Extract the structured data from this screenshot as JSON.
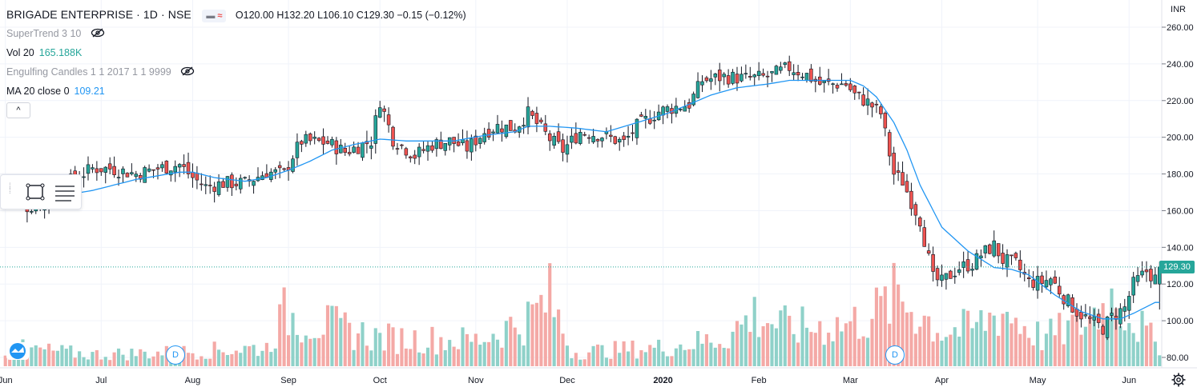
{
  "header": {
    "symbol_title": "BRIGADE ENTERPRISE · 1D · NSE",
    "badge_symbol": "≈",
    "ohlc": "O120.00  H132.20  L106.10  C129.30  −0.15 (−0.12%)"
  },
  "indicators": {
    "supertrend": "SuperTrend 3 10",
    "vol_label": "Vol 20",
    "vol_value": "165.188K",
    "engulfing": "Engulfing Candles 1 1 2017 1 1 9999",
    "ma_label": "MA 20 close 0",
    "ma_value": "109.21"
  },
  "currency": "INR",
  "last_price_label": "129.30",
  "collapse_label": "^",
  "dividend_marker_label": "D",
  "colors": {
    "up": "#26a69a",
    "down": "#ef5350",
    "up_volume": "#8fd1c9",
    "down_volume": "#f4a9a6",
    "ma_line": "#2196f3",
    "grid": "#f0f3fa",
    "axis_text": "#131722"
  },
  "icons": [
    "eye-off-icon",
    "rectangle-tool-icon",
    "lines-tool-icon",
    "drag-handle-icon",
    "tradingview-logo-icon",
    "gear-icon",
    "chevron-up-icon"
  ],
  "chart_data": {
    "type": "candlestick",
    "title": "BRIGADE ENTERPRISE · 1D · NSE",
    "ylim": [
      75,
      265
    ],
    "price_ticks": [
      80,
      100,
      120,
      140,
      160,
      180,
      200,
      220,
      240,
      260
    ],
    "price_tick_labels": [
      "80.00",
      "100.00",
      "120.00",
      "140.00",
      "160.00",
      "180.00",
      "200.00",
      "220.00",
      "240.00",
      "260.00"
    ],
    "x_tick_labels": [
      "Jun",
      "Jul",
      "Aug",
      "Sep",
      "Oct",
      "Nov",
      "Dec",
      "2020",
      "Feb",
      "Mar",
      "Apr",
      "May",
      "Jun"
    ],
    "x_tick_bars": [
      0,
      22,
      43,
      65,
      86,
      108,
      129,
      151,
      173,
      194,
      215,
      237,
      258
    ],
    "last_close": 129.3,
    "grid": true,
    "series": [
      {
        "name": "MA 20 close 0",
        "kind": "line",
        "anchors": [
          [
            0,
            163
          ],
          [
            10,
            167
          ],
          [
            20,
            171
          ],
          [
            30,
            177
          ],
          [
            40,
            181
          ],
          [
            43,
            181
          ],
          [
            48,
            178
          ],
          [
            55,
            176
          ],
          [
            60,
            178
          ],
          [
            65,
            182
          ],
          [
            70,
            187
          ],
          [
            75,
            193
          ],
          [
            80,
            196
          ],
          [
            86,
            199
          ],
          [
            92,
            198
          ],
          [
            97,
            198
          ],
          [
            103,
            198
          ],
          [
            110,
            201
          ],
          [
            117,
            203
          ],
          [
            120,
            206
          ],
          [
            125,
            206
          ],
          [
            131,
            205
          ],
          [
            138,
            203
          ],
          [
            145,
            208
          ],
          [
            152,
            213
          ],
          [
            157,
            218
          ],
          [
            162,
            223
          ],
          [
            168,
            227
          ],
          [
            175,
            229
          ],
          [
            180,
            231
          ],
          [
            187,
            231
          ],
          [
            194,
            231
          ],
          [
            197,
            228
          ],
          [
            200,
            222
          ],
          [
            204,
            208
          ],
          [
            207,
            193
          ],
          [
            210,
            174
          ],
          [
            215,
            151
          ],
          [
            221,
            138
          ],
          [
            227,
            129
          ],
          [
            231,
            128
          ],
          [
            235,
            125
          ],
          [
            241,
            114
          ],
          [
            247,
            105
          ],
          [
            252,
            101
          ],
          [
            256,
            101
          ],
          [
            259,
            104
          ],
          [
            264,
            110
          ]
        ]
      },
      {
        "name": "Price",
        "kind": "candles",
        "anchors": [
          [
            0,
            169
          ],
          [
            5,
            162
          ],
          [
            10,
            165
          ],
          [
            14,
            175
          ],
          [
            20,
            183
          ],
          [
            24,
            183
          ],
          [
            30,
            180
          ],
          [
            35,
            183
          ],
          [
            40,
            185
          ],
          [
            43,
            178
          ],
          [
            46,
            173
          ],
          [
            50,
            175
          ],
          [
            55,
            175
          ],
          [
            60,
            181
          ],
          [
            64,
            180
          ],
          [
            66,
            190
          ],
          [
            68,
            198
          ],
          [
            74,
            197
          ],
          [
            78,
            192
          ],
          [
            81,
            195
          ],
          [
            84,
            198
          ],
          [
            86,
            220
          ],
          [
            89,
            199
          ],
          [
            94,
            190
          ],
          [
            98,
            196
          ],
          [
            102,
            198
          ],
          [
            106,
            194
          ],
          [
            110,
            203
          ],
          [
            113,
            206
          ],
          [
            117,
            205
          ],
          [
            120,
            213
          ],
          [
            125,
            199
          ],
          [
            128,
            193
          ],
          [
            132,
            203
          ],
          [
            137,
            201
          ],
          [
            142,
            197
          ],
          [
            145,
            206
          ],
          [
            150,
            214
          ],
          [
            153,
            216
          ],
          [
            157,
            218
          ],
          [
            160,
            231
          ],
          [
            165,
            233
          ],
          [
            170,
            232
          ],
          [
            175,
            233
          ],
          [
            180,
            238
          ],
          [
            184,
            234
          ],
          [
            187,
            229
          ],
          [
            190,
            229
          ],
          [
            193,
            229
          ],
          [
            195,
            223
          ],
          [
            198,
            219
          ],
          [
            201,
            213
          ],
          [
            204,
            180
          ],
          [
            206,
            176
          ],
          [
            208,
            165
          ],
          [
            210,
            155
          ],
          [
            213,
            123
          ],
          [
            215,
            121
          ],
          [
            219,
            129
          ],
          [
            222,
            131
          ],
          [
            224,
            136
          ],
          [
            227,
            141
          ],
          [
            229,
            133
          ],
          [
            232,
            131
          ],
          [
            235,
            121
          ],
          [
            238,
            121
          ],
          [
            240,
            123
          ],
          [
            243,
            113
          ],
          [
            246,
            105
          ],
          [
            249,
            100
          ],
          [
            252,
            96
          ],
          [
            254,
            102
          ],
          [
            257,
            107
          ],
          [
            259,
            120
          ],
          [
            262,
            127
          ],
          [
            264,
            123
          ]
        ]
      },
      {
        "name": "Volume",
        "kind": "volume",
        "anchors": [
          [
            0,
            40
          ],
          [
            20,
            25
          ],
          [
            40,
            30
          ],
          [
            60,
            40
          ],
          [
            64,
            110
          ],
          [
            86,
            60
          ],
          [
            108,
            55
          ],
          [
            120,
            100
          ],
          [
            125,
            145
          ],
          [
            130,
            30
          ],
          [
            151,
            40
          ],
          [
            165,
            60
          ],
          [
            172,
            110
          ],
          [
            180,
            80
          ],
          [
            194,
            90
          ],
          [
            200,
            115
          ],
          [
            205,
            150
          ],
          [
            215,
            75
          ],
          [
            222,
            80
          ],
          [
            229,
            120
          ],
          [
            238,
            60
          ],
          [
            247,
            90
          ],
          [
            255,
            150
          ],
          [
            260,
            90
          ],
          [
            264,
            50
          ]
        ]
      }
    ]
  }
}
